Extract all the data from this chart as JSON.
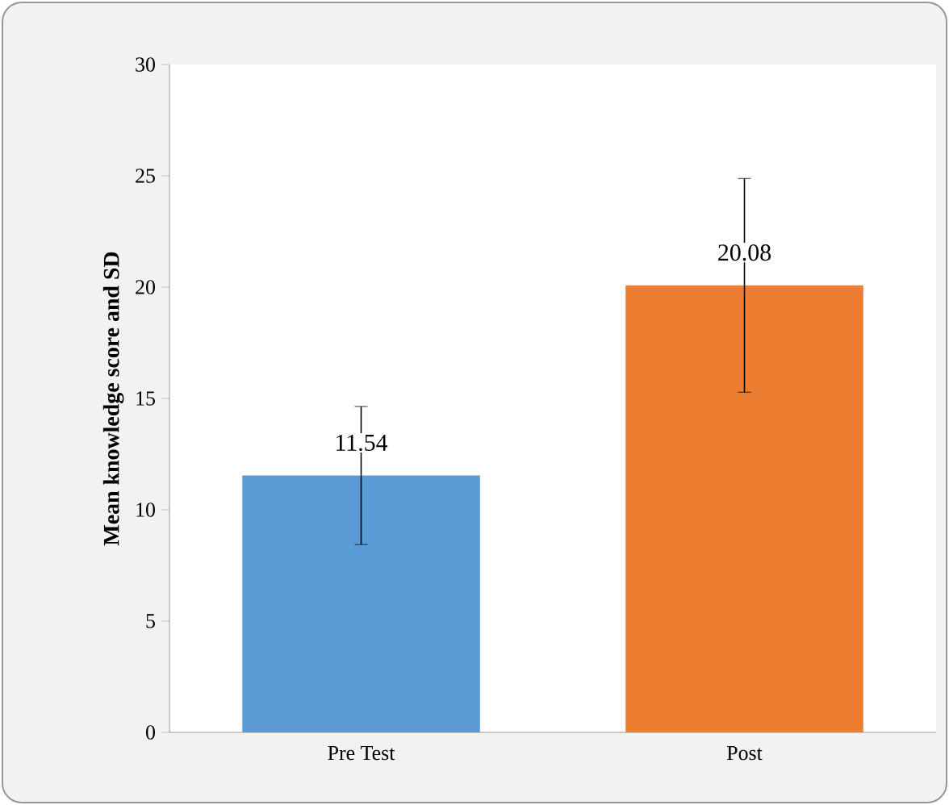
{
  "chart_data": {
    "type": "bar",
    "ylabel": "Mean knowledge score and SD",
    "categories": [
      "Pre Test",
      "Post"
    ],
    "values": [
      11.54,
      20.08
    ],
    "errors": [
      3.1,
      4.8
    ],
    "colors": [
      "#5b9bd5",
      "#ed7d31"
    ],
    "value_labels": [
      "11.54",
      "20.08"
    ],
    "ylim": [
      0,
      30
    ],
    "yticks": [
      0,
      5,
      10,
      15,
      20,
      25,
      30
    ],
    "grid": false
  }
}
